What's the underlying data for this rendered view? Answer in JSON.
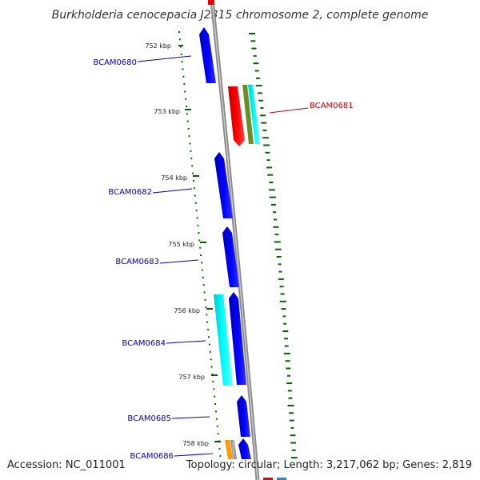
{
  "title": "Burkholderia cenocepacia J2315 chromosome 2, complete genome",
  "footer": {
    "accession": "Accession: NC_011001",
    "topology": "Topology: circular; Length: 3,217,062 bp; Genes: 2,819"
  },
  "ticks": [
    {
      "label": "752 kbp"
    },
    {
      "label": "753 kbp"
    },
    {
      "label": "754 kbp"
    },
    {
      "label": "755 kbp"
    },
    {
      "label": "756 kbp"
    },
    {
      "label": "757 kbp"
    },
    {
      "label": "758 kbp"
    }
  ],
  "genes": [
    {
      "label": "BCAM0680",
      "color": "#0000cc"
    },
    {
      "label": "BCAM0681",
      "color": "#cc0000"
    },
    {
      "label": "BCAM0682",
      "color": "#0000cc"
    },
    {
      "label": "BCAM0683",
      "color": "#0000cc"
    },
    {
      "label": "BCAM0684",
      "color": "#0000cc"
    },
    {
      "label": "BCAM0685",
      "color": "#0000cc"
    },
    {
      "label": "BCAM0686",
      "color": "#0000cc"
    }
  ],
  "colors": {
    "backbone": "#8a8a8a",
    "forward_gene": "#0000ee",
    "reverse_gene": "#ee0000",
    "cyan_feature": "#00dddd",
    "olive_feature": "#6b8e23",
    "orange_feature": "#ff9900",
    "gc_skew_dots": "#006600"
  }
}
